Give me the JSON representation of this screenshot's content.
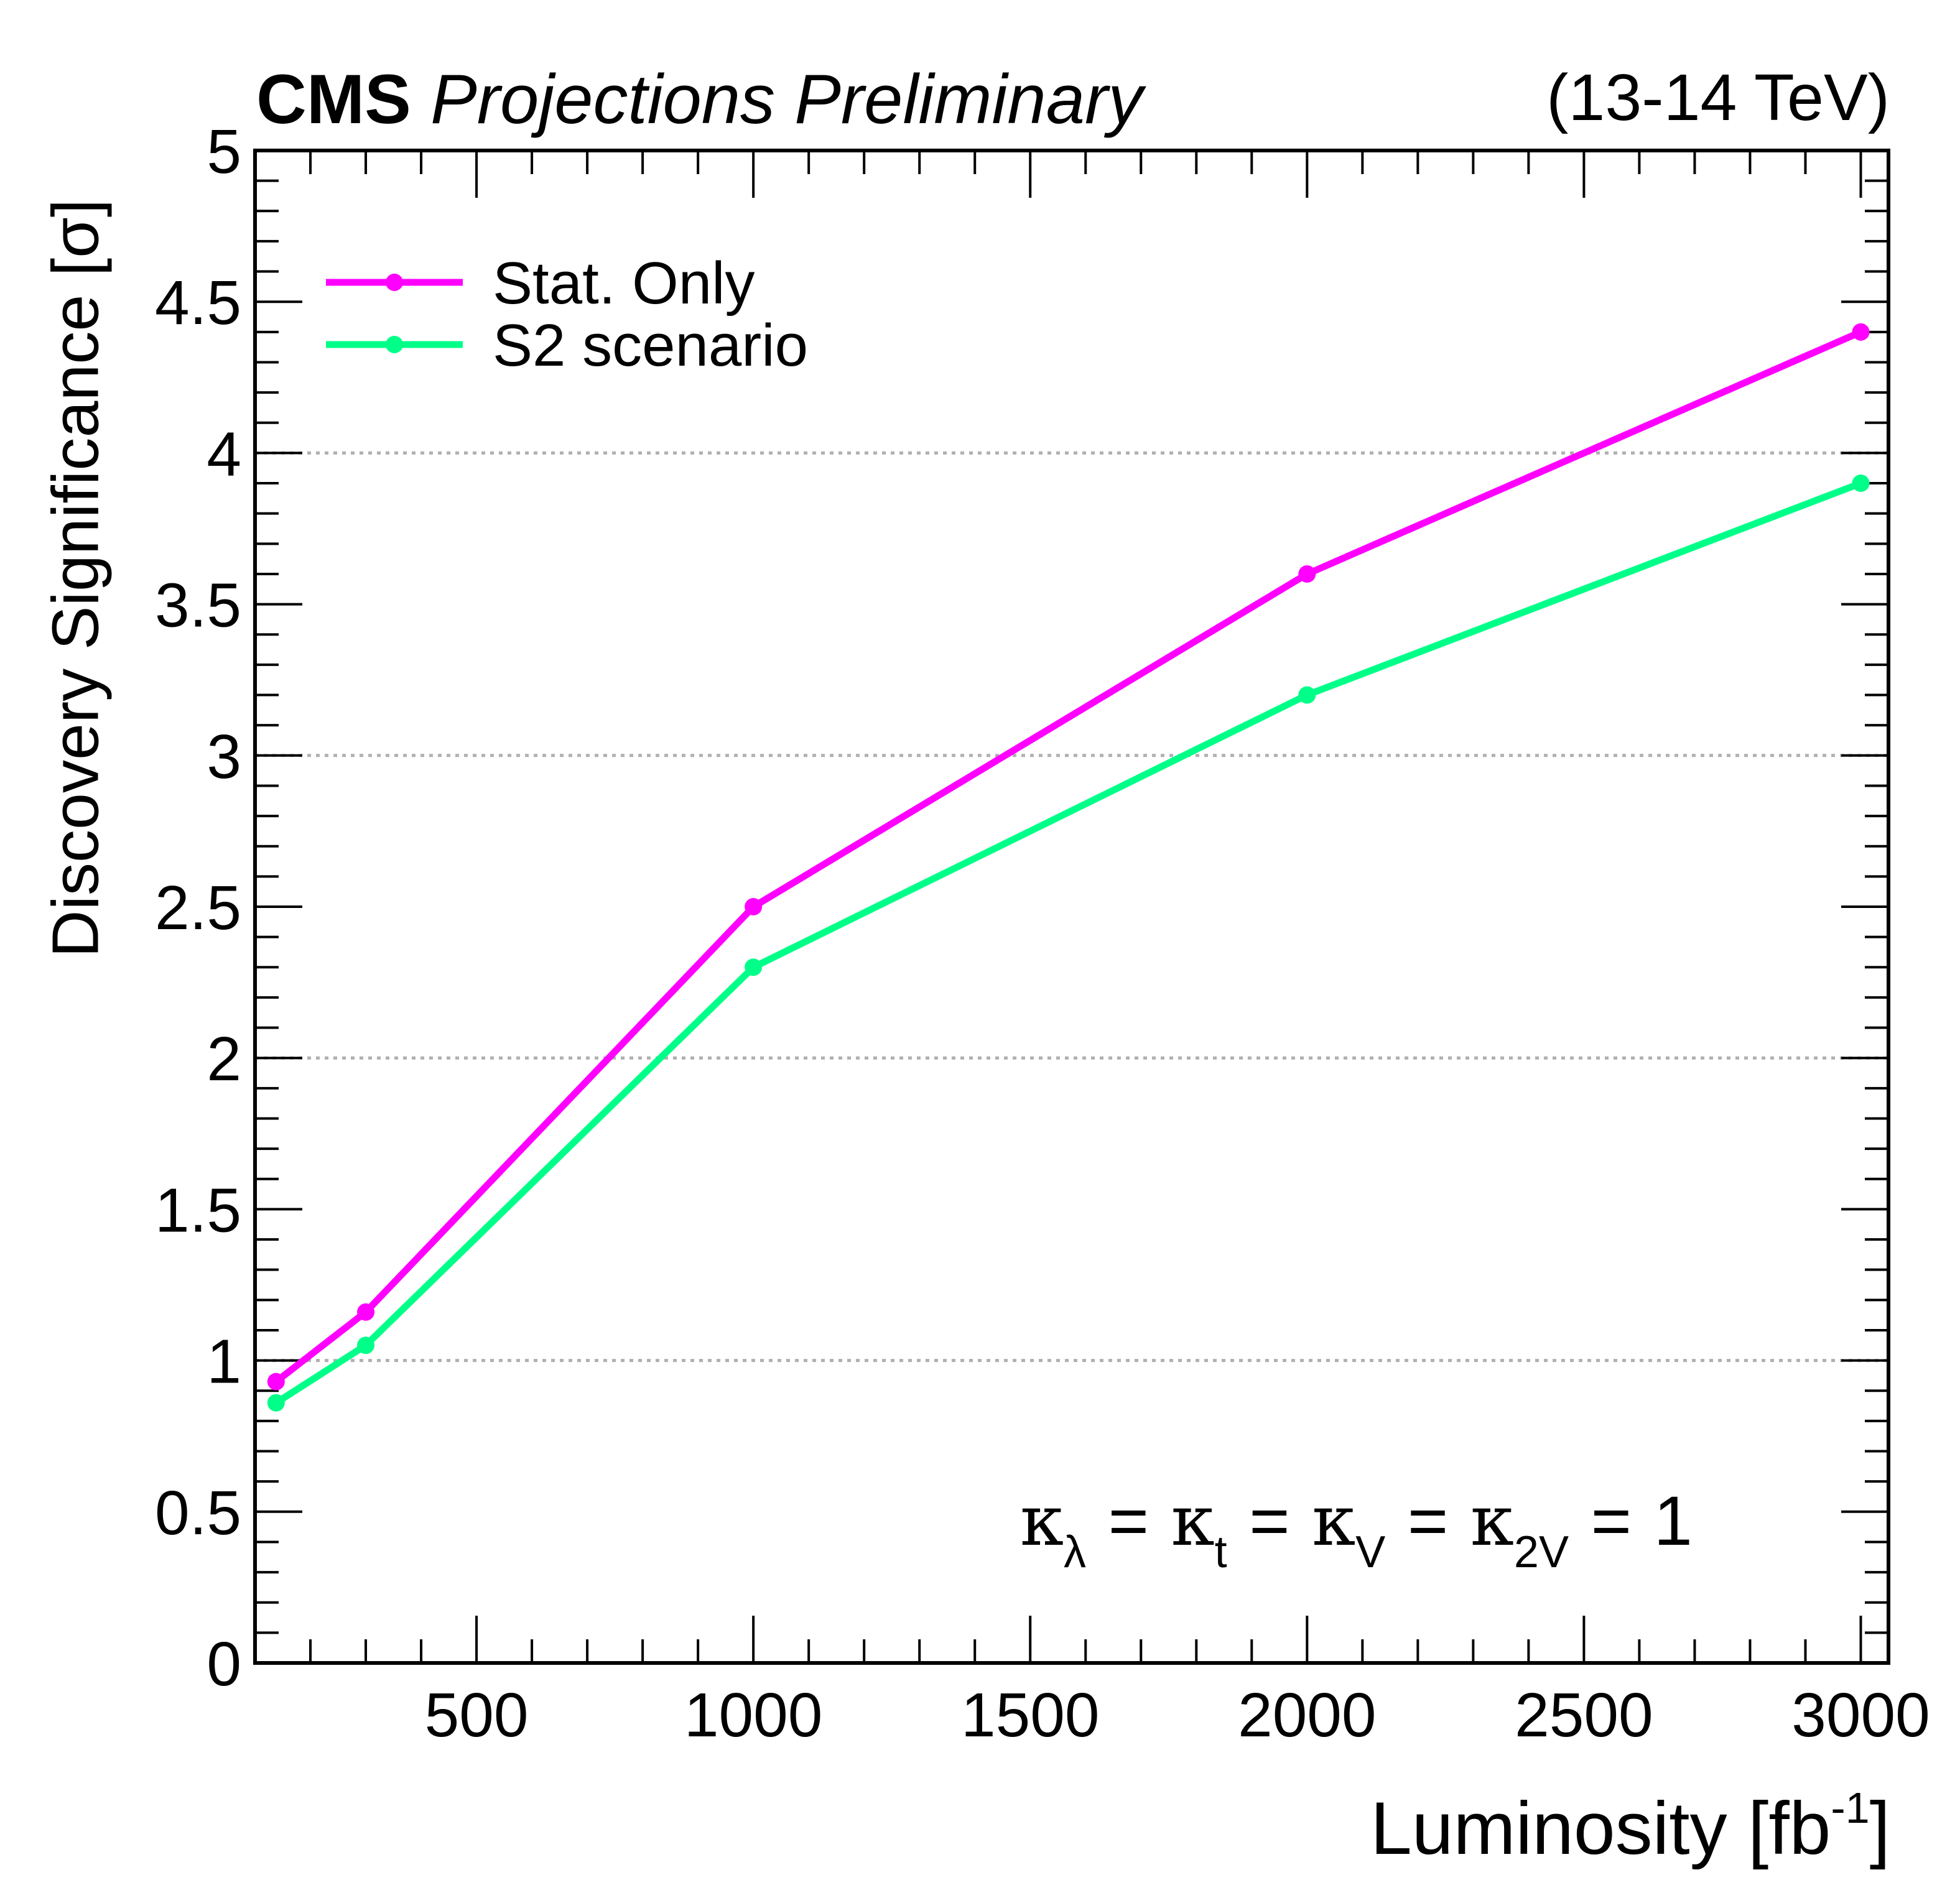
{
  "header": {
    "cms": "CMS",
    "subtitle": "Projections Preliminary",
    "energy": "(13-14 TeV)"
  },
  "annotation": {
    "k1_sub": "λ",
    "k2_sub": "t",
    "k3_sub": "V",
    "k4_sub": "2V",
    "kappa": "κ",
    "eq": "=",
    "rhs": "1"
  },
  "colors": {
    "stat_only": "#ff00ff",
    "s2": "#00ff88",
    "grid": "#b0b0b0"
  },
  "chart_data": {
    "type": "line",
    "title": "",
    "xlabel_main": "Luminosity [fb",
    "xlabel_sup": "-1",
    "xlabel_end": "]",
    "ylabel": "Discovery Significance [σ]",
    "xlim": [
      100,
      3050
    ],
    "ylim": [
      0,
      5
    ],
    "x_ticks": [
      500,
      1000,
      1500,
      2000,
      2500,
      3000
    ],
    "x_tick_labels": [
      "500",
      "1000",
      "1500",
      "2000",
      "2500",
      "3000"
    ],
    "y_ticks": [
      0,
      0.5,
      1,
      1.5,
      2,
      2.5,
      3,
      3.5,
      4,
      4.5,
      5
    ],
    "y_tick_labels": [
      "0",
      "0.5",
      "1",
      "1.5",
      "2",
      "2.5",
      "3",
      "3.5",
      "4",
      "4.5",
      "5"
    ],
    "grid_y": [
      1,
      2,
      3,
      4,
      5
    ],
    "legend_position": "top-left",
    "series": [
      {
        "name": "Stat. Only",
        "color": "#ff00ff",
        "x": [
          138,
          300,
          1000,
          2000,
          3000
        ],
        "y": [
          0.93,
          1.16,
          2.5,
          3.6,
          4.4
        ]
      },
      {
        "name": "S2 scenario",
        "color": "#00ff88",
        "x": [
          138,
          300,
          1000,
          2000,
          3000
        ],
        "y": [
          0.86,
          1.05,
          2.3,
          3.2,
          3.9
        ]
      }
    ]
  }
}
